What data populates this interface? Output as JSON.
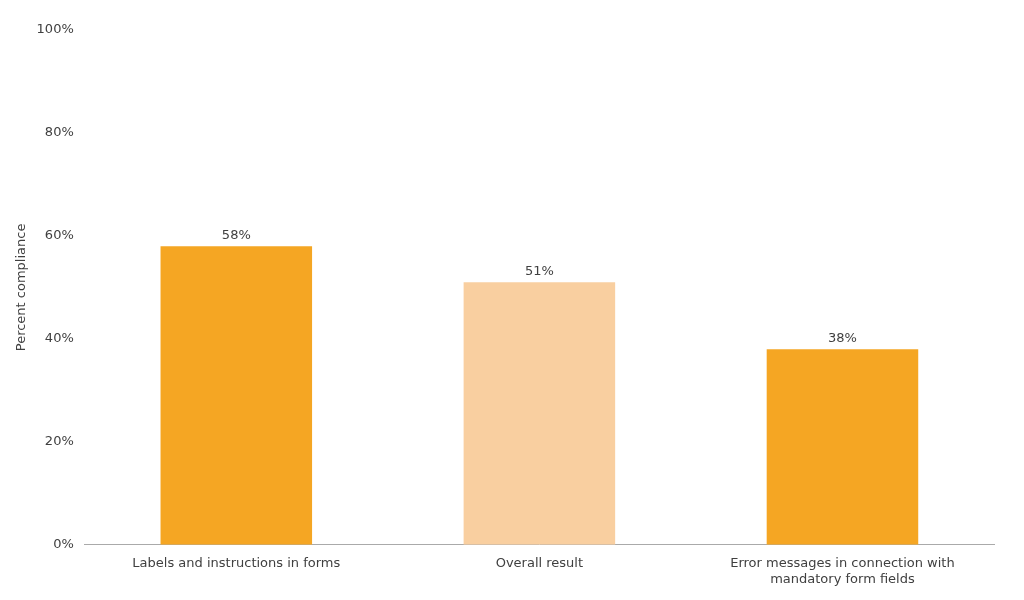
{
  "chart_data": {
    "type": "bar",
    "categories": [
      "Labels and instructions in forms",
      "Overall result",
      "Error messages in connection with\nmandatory form fields"
    ],
    "values": [
      58,
      51,
      38
    ],
    "value_labels": [
      "58%",
      "51%",
      "38%"
    ],
    "data_labels": true,
    "colors": [
      "#F5A623",
      "#F9CFA0",
      "#F5A623"
    ],
    "ylabel": "Percent compliance",
    "ylim": [
      0,
      100
    ],
    "yticks": [
      {
        "value": 0,
        "label": "0%"
      },
      {
        "value": 20,
        "label": "20%"
      },
      {
        "value": 40,
        "label": "40%"
      },
      {
        "value": 60,
        "label": "60%"
      },
      {
        "value": 80,
        "label": "80%"
      },
      {
        "value": 100,
        "label": "100%"
      }
    ],
    "grid": false
  }
}
